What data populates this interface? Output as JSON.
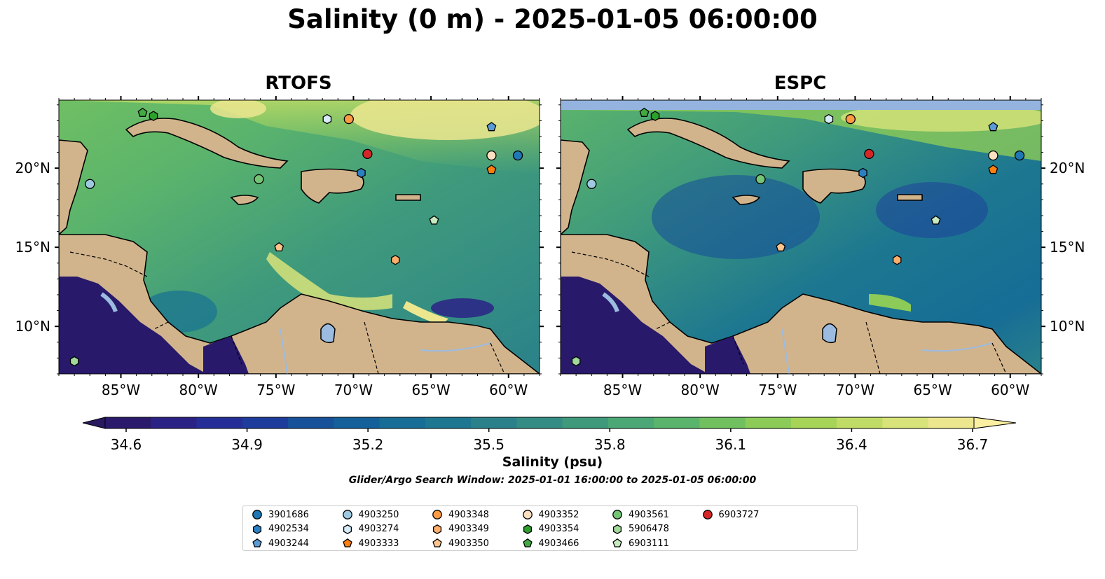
{
  "title": "Salinity (0 m) - 2025-01-05 06:00:00",
  "panels": [
    {
      "name": "RTOFS"
    },
    {
      "name": "ESPC"
    }
  ],
  "map_extent": {
    "lon": [
      -89,
      -58
    ],
    "lat": [
      7,
      24.3
    ]
  },
  "lon_ticks": [
    "85°W",
    "80°W",
    "75°W",
    "70°W",
    "65°W",
    "60°W"
  ],
  "lat_ticks": [
    "10°N",
    "15°N",
    "20°N"
  ],
  "colorbar": {
    "label": "Salinity (psu)",
    "ticks": [
      "34.6",
      "34.9",
      "35.2",
      "35.5",
      "35.8",
      "36.1",
      "36.4",
      "36.7"
    ],
    "range": [
      34.6,
      36.7
    ],
    "colors": [
      "#2b1a6b",
      "#2b2286",
      "#252e98",
      "#1e3c9c",
      "#17519a",
      "#13609a",
      "#166d96",
      "#1d7790",
      "#2a818a",
      "#348d84",
      "#3f9a7c",
      "#4ba876",
      "#5bb46c",
      "#71c060",
      "#8ccb58",
      "#a7d457",
      "#c1dc66",
      "#d8e37a",
      "#ece68f"
    ],
    "under_color": "#281960",
    "over_color": "#fbefa2"
  },
  "search_window": "Glider/Argo Search Window: 2025-01-01 16:00:00 to 2025-01-05 06:00:00",
  "colors": {
    "land": "#d2b48c",
    "lakes": "#9cbbe0",
    "ocean_dark": "#28196b",
    "espc_nodata": "#94b4df"
  },
  "legend": [
    {
      "id": "3901686",
      "marker": "circle",
      "color": "#1f77b4"
    },
    {
      "id": "4902534",
      "marker": "hexagon",
      "color": "#2b80c4"
    },
    {
      "id": "4903244",
      "marker": "pentagon",
      "color": "#5b9bd5"
    },
    {
      "id": "4903250",
      "marker": "circle",
      "color": "#9ecae1"
    },
    {
      "id": "4903274",
      "marker": "hexagon",
      "color": "#d6ecf8"
    },
    {
      "id": "4903333",
      "marker": "pentagon",
      "color": "#ff7f0e"
    },
    {
      "id": "4903348",
      "marker": "circle",
      "color": "#fd9a44"
    },
    {
      "id": "4903349",
      "marker": "hexagon",
      "color": "#fdae6b"
    },
    {
      "id": "4903350",
      "marker": "pentagon",
      "color": "#fdc48c"
    },
    {
      "id": "4903352",
      "marker": "circle",
      "color": "#fde0c0"
    },
    {
      "id": "4903354",
      "marker": "hexagon",
      "color": "#2ca02c"
    },
    {
      "id": "4903466",
      "marker": "pentagon",
      "color": "#41ab41"
    },
    {
      "id": "4903561",
      "marker": "circle",
      "color": "#74c476"
    },
    {
      "id": "5906478",
      "marker": "hexagon",
      "color": "#a1d99b"
    },
    {
      "id": "6903111",
      "marker": "pentagon",
      "color": "#c7e9c0"
    },
    {
      "id": "6903727",
      "marker": "circle",
      "color": "#d62728"
    }
  ],
  "stations": [
    {
      "id": "4903466",
      "lon": -83.6,
      "lat": 23.5
    },
    {
      "id": "4903354",
      "lon": -82.9,
      "lat": 23.3
    },
    {
      "id": "4903274",
      "lon": -71.7,
      "lat": 23.1
    },
    {
      "id": "4903348",
      "lon": -70.3,
      "lat": 23.1
    },
    {
      "id": "4903244",
      "lon": -61.1,
      "lat": 22.6
    },
    {
      "id": "6903727",
      "lon": -69.1,
      "lat": 20.9
    },
    {
      "id": "4903352",
      "lon": -61.1,
      "lat": 20.8
    },
    {
      "id": "3901686",
      "lon": -59.4,
      "lat": 20.8
    },
    {
      "id": "4903333",
      "lon": -61.1,
      "lat": 19.9
    },
    {
      "id": "4902534",
      "lon": -69.5,
      "lat": 19.7
    },
    {
      "id": "4903561",
      "lon": -76.1,
      "lat": 19.3
    },
    {
      "id": "4903250",
      "lon": -87.0,
      "lat": 19.0
    },
    {
      "id": "6903111",
      "lon": -64.8,
      "lat": 16.7
    },
    {
      "id": "4903350",
      "lon": -74.8,
      "lat": 15.0
    },
    {
      "id": "4903349",
      "lon": -67.3,
      "lat": 14.2
    },
    {
      "id": "5906478",
      "lon": -88.0,
      "lat": 7.8
    }
  ]
}
